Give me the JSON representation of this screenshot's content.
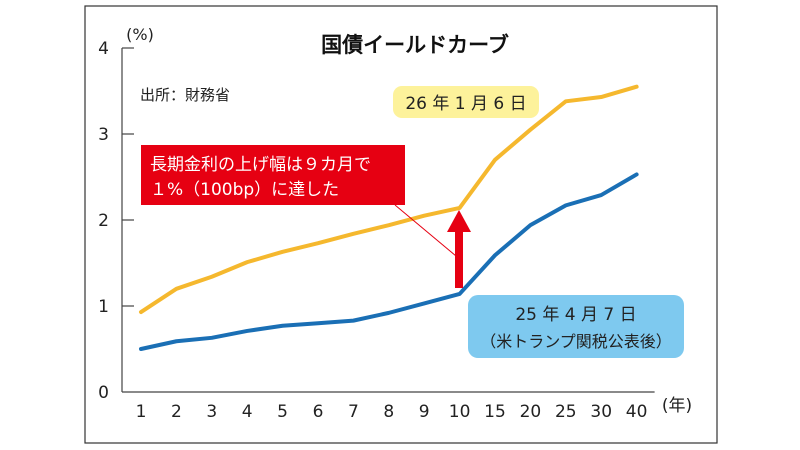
{
  "chart_data": {
    "type": "line",
    "title": "国債イールドカーブ",
    "source": "出所：財務省",
    "ylabel": "(%)",
    "xlabel": "(年)",
    "ylim": [
      0,
      4
    ],
    "yticks": [
      "0",
      "1",
      "2",
      "3",
      "4"
    ],
    "categories": [
      "1",
      "2",
      "3",
      "4",
      "5",
      "6",
      "7",
      "8",
      "9",
      "10",
      "15",
      "20",
      "25",
      "30",
      "40"
    ],
    "grid": false,
    "series": [
      {
        "name": "26 年 1 月 6 日",
        "color": "#f5b82e",
        "label_bg": "#fdf29b",
        "values": [
          0.93,
          1.2,
          1.34,
          1.51,
          1.63,
          1.73,
          1.84,
          1.94,
          2.05,
          2.14,
          2.7,
          3.05,
          3.38,
          3.43,
          3.55
        ]
      },
      {
        "name_line1": "25 年 4 月 7 日",
        "name_line2": "（米トランプ関税公表後）",
        "color": "#1a6fb5",
        "label_bg": "#7ec9ef",
        "values": [
          0.5,
          0.59,
          0.63,
          0.71,
          0.77,
          0.8,
          0.83,
          0.92,
          1.03,
          1.14,
          1.59,
          1.94,
          2.17,
          2.29,
          2.53
        ]
      }
    ],
    "annotation": {
      "line1": "長期金利の上げ幅は９カ月で",
      "line2": "１%（100bp）に達した",
      "color": "#e60012"
    }
  }
}
